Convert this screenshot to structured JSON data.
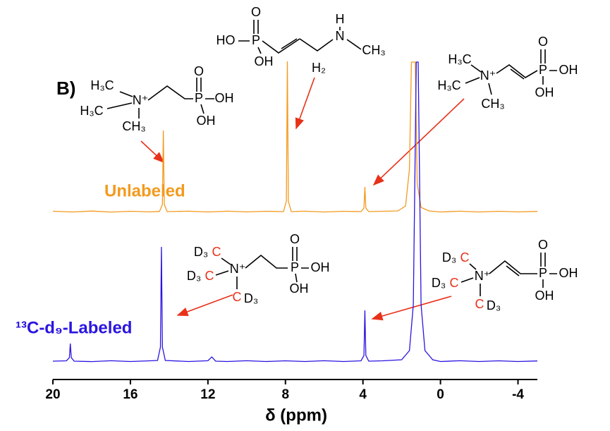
{
  "chart_data": {
    "type": "line",
    "label": "B)",
    "xlabel": "δ (ppm)",
    "xlim": [
      20,
      -5
    ],
    "xticks": [
      20,
      16,
      12,
      8,
      4,
      0,
      -4
    ],
    "series": [
      {
        "name": "Unlabeled",
        "color": "#f39a1e",
        "x": [
          20,
          19,
          18,
          17,
          16,
          15,
          14.5,
          14.35,
          14.3,
          14.25,
          14.1,
          13,
          12,
          11,
          10,
          9,
          8.1,
          7.95,
          7.9,
          7.85,
          7.7,
          7,
          6,
          5,
          4.1,
          3.95,
          3.9,
          3.85,
          3.7,
          3,
          2.2,
          1.8,
          1.6,
          1.5,
          1.3,
          1.2,
          1.0,
          0.6,
          0,
          -1,
          -2,
          -3,
          -4,
          -5
        ],
        "values": [
          0.5,
          -0.5,
          0.8,
          -0.6,
          0.5,
          -0.4,
          0.3,
          10,
          115,
          10,
          0,
          0.6,
          -0.5,
          0.6,
          -0.4,
          0.5,
          0,
          15,
          213,
          15,
          0,
          0.6,
          -0.5,
          0.5,
          0,
          5,
          35,
          5,
          0,
          0.5,
          1,
          8,
          60,
          212,
          212,
          40,
          6,
          1,
          -0.5,
          0.6,
          -0.5,
          0.5,
          -0.4,
          0.3
        ]
      },
      {
        "name": "¹³C-d₉-Labeled",
        "color": "#2a14e0",
        "x": [
          20,
          19.3,
          19.15,
          19.1,
          19.05,
          18.9,
          18,
          17,
          16,
          15,
          14.6,
          14.45,
          14.4,
          14.35,
          14.2,
          13,
          12,
          11.8,
          11.6,
          11,
          10,
          9,
          8,
          7,
          6,
          5,
          4.1,
          3.95,
          3.9,
          3.85,
          3.7,
          3,
          2,
          1.6,
          1.4,
          1.25,
          1.15,
          1.0,
          0.8,
          0.4,
          0,
          -1,
          -2,
          -3,
          -4,
          -5
        ],
        "values": [
          0,
          0.5,
          5,
          25,
          5,
          0,
          -0.6,
          0.6,
          -0.5,
          0.5,
          1,
          20,
          162,
          20,
          1,
          -0.5,
          0.6,
          6,
          0,
          -0.5,
          0.6,
          -0.5,
          0.5,
          -0.5,
          0.6,
          -0.5,
          0.5,
          8,
          72,
          8,
          0,
          0.5,
          2,
          15,
          80,
          424,
          424,
          80,
          15,
          2,
          -0.5,
          0.6,
          -0.5,
          0.5,
          -0.5,
          0.3
        ]
      }
    ]
  },
  "structures": [
    {
      "atoms": [
        "H₃C",
        "H₃C",
        "N⁺",
        "CH₃",
        "P",
        "O",
        "OH",
        "OH"
      ]
    },
    {
      "atoms": [
        "HO",
        "P",
        "O",
        "OH",
        "H",
        "N",
        "CH₃",
        "H₂"
      ]
    },
    {
      "atoms": [
        "H₃C",
        "H₃C",
        "N⁺",
        "CH₃",
        "P",
        "O",
        "OH",
        "OH"
      ]
    },
    {
      "atoms": [
        "D₃",
        "C",
        "D₃",
        "C",
        "N⁺",
        "C",
        "D₃",
        "P",
        "O",
        "OH",
        "OH"
      ]
    },
    {
      "atoms": [
        "D₃",
        "C",
        "D₃",
        "C",
        "N⁺",
        "C",
        "D₃",
        "P",
        "O",
        "OH",
        "OH"
      ]
    }
  ]
}
